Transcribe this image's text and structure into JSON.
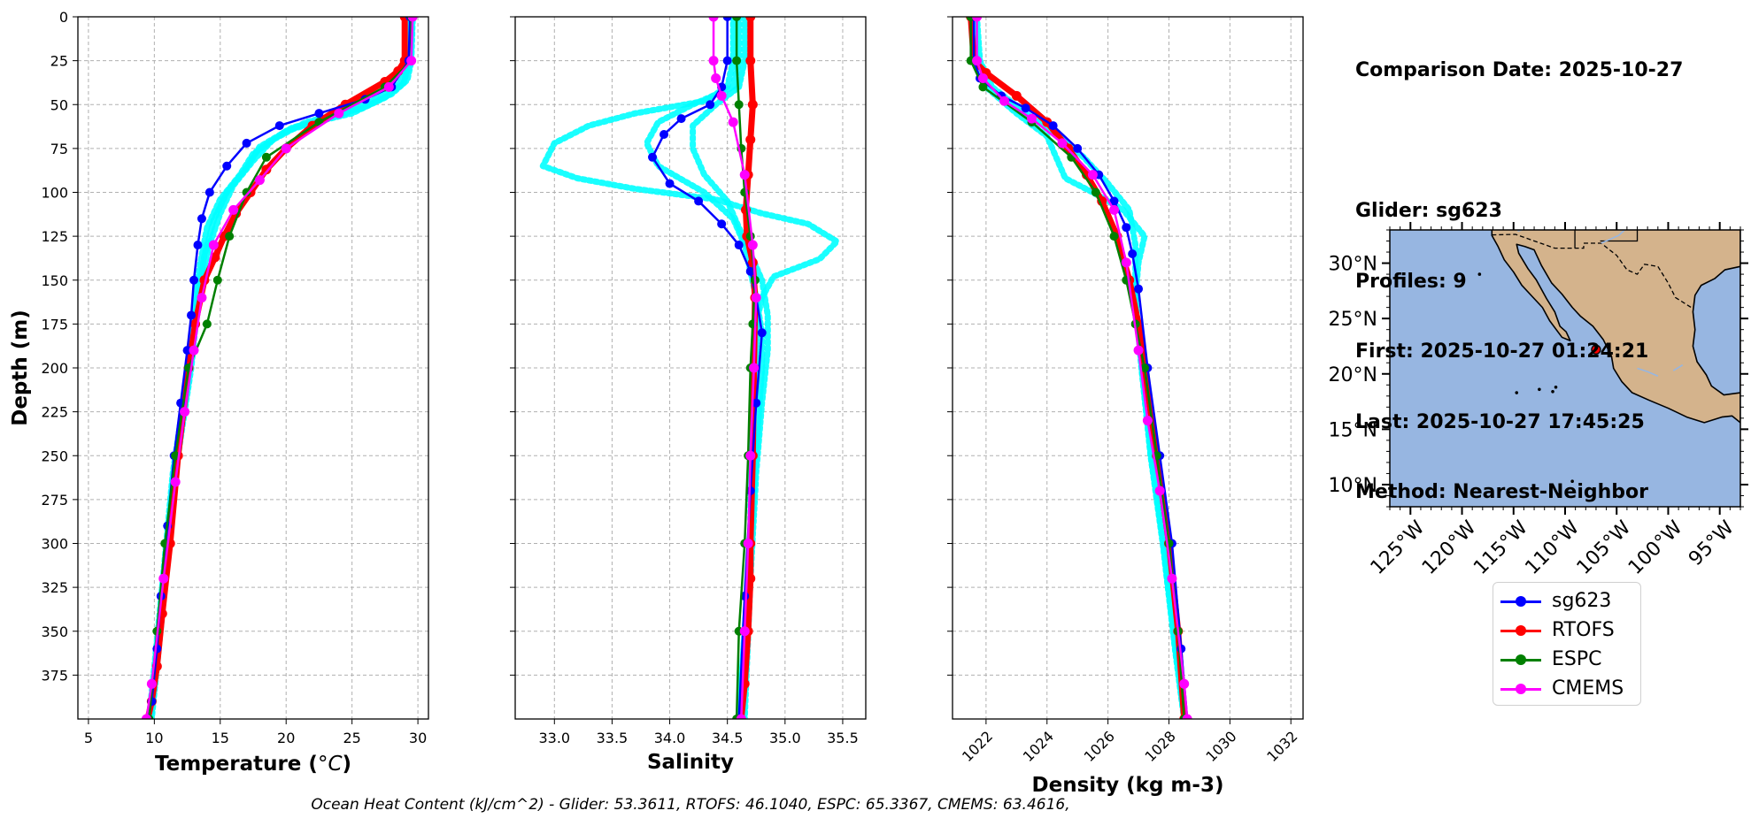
{
  "info": {
    "comparison_date": "Comparison Date: 2025-10-27",
    "glider": "Glider: sg623",
    "profiles": "Profiles: 9",
    "first": "First: 2025-10-27 01:24:21",
    "last": "Last: 2025-10-27 17:45:25",
    "method": "Method: Nearest-Neighbor"
  },
  "legend": [
    {
      "label": "sg623",
      "color": "#0000ff"
    },
    {
      "label": "RTOFS",
      "color": "#ff0000"
    },
    {
      "label": "ESPC",
      "color": "#008000"
    },
    {
      "label": "CMEMS",
      "color": "#ff00ff"
    }
  ],
  "footer": "Ocean Heat Content (kJ/cm^2) - Glider: 53.3611,  RTOFS: 46.1040,  ESPC: 65.3367,  CMEMS: 63.4616,",
  "colors": {
    "glider_raw": "#00ffff",
    "sg623": "#0000ff",
    "RTOFS": "#ff0000",
    "ESPC": "#008000",
    "CMEMS": "#ff00ff",
    "ocean": "#97b6e1",
    "land": "#d4b38c"
  },
  "chart_data": [
    {
      "type": "line",
      "title": "",
      "xlabel": "Temperature (°C)",
      "ylabel": "Depth (m)",
      "xlim": [
        4.2,
        30.8
      ],
      "ylim": [
        400,
        0
      ],
      "xticks": [
        5,
        10,
        15,
        20,
        25,
        30
      ],
      "yticks": [
        0,
        25,
        50,
        75,
        100,
        125,
        150,
        175,
        200,
        225,
        250,
        275,
        300,
        325,
        350,
        375
      ],
      "raw_profiles": [
        {
          "x": [
            29.4,
            29.3,
            28.6,
            27.0,
            24.5,
            20.0,
            17.5,
            16.5,
            15.0,
            14.0,
            13.5,
            13.1,
            12.9,
            12.6,
            12.0,
            11.4,
            10.9,
            10.4,
            10.0,
            9.6
          ],
          "y": [
            2,
            25,
            38,
            46,
            55,
            65,
            78,
            90,
            104,
            120,
            140,
            160,
            180,
            200,
            230,
            260,
            300,
            340,
            370,
            400
          ]
        },
        {
          "x": [
            29.5,
            29.4,
            28.9,
            27.5,
            25.0,
            20.5,
            18.0,
            17.0,
            15.5,
            14.5,
            13.8,
            13.3,
            13.0,
            12.7,
            12.1,
            11.5,
            11.0,
            10.5,
            10.1,
            9.7
          ],
          "y": [
            2,
            25,
            38,
            46,
            55,
            63,
            74,
            86,
            100,
            116,
            136,
            158,
            178,
            200,
            230,
            260,
            300,
            340,
            370,
            400
          ]
        },
        {
          "x": [
            29.6,
            29.5,
            29.2,
            28.0,
            25.8,
            21.5,
            19.0,
            17.5,
            16.0,
            15.0,
            14.1,
            13.5,
            13.1,
            12.8,
            12.2,
            11.6,
            11.1,
            10.6,
            10.2,
            9.8
          ],
          "y": [
            2,
            25,
            36,
            44,
            52,
            60,
            70,
            82,
            96,
            112,
            132,
            155,
            178,
            200,
            230,
            260,
            300,
            340,
            370,
            400
          ]
        }
      ],
      "series": [
        {
          "name": "sg623",
          "x": [
            29.4,
            29.3,
            28.0,
            26.0,
            22.5,
            19.5,
            17.0,
            15.5,
            14.2,
            13.6,
            13.3,
            13.0,
            12.8,
            12.5,
            12.0,
            11.5,
            11.0,
            10.5,
            10.2,
            9.8,
            9.5
          ],
          "y": [
            0,
            25,
            40,
            47,
            55,
            62,
            72,
            85,
            100,
            115,
            130,
            150,
            170,
            190,
            220,
            250,
            290,
            330,
            360,
            390,
            400
          ]
        },
        {
          "name": "RTOFS",
          "x": [
            29.0,
            29.0,
            28.5,
            27.5,
            24.5,
            22.0,
            20.0,
            18.5,
            17.3,
            16.2,
            15.3,
            14.6,
            13.8,
            13.1,
            12.6,
            11.8,
            11.2,
            10.6,
            10.2,
            9.8,
            9.5
          ],
          "y": [
            0,
            25,
            31,
            37,
            50,
            62,
            75,
            87,
            100,
            112,
            125,
            137,
            150,
            175,
            200,
            250,
            300,
            340,
            370,
            390,
            400
          ]
        },
        {
          "name": "ESPC",
          "x": [
            29.5,
            29.5,
            27.5,
            22.5,
            18.5,
            17.0,
            15.7,
            14.8,
            14.0,
            12.6,
            11.6,
            10.8,
            10.2,
            9.6
          ],
          "y": [
            0,
            25,
            40,
            60,
            80,
            100,
            125,
            150,
            175,
            200,
            250,
            300,
            350,
            400
          ]
        },
        {
          "name": "CMEMS",
          "x": [
            29.6,
            29.5,
            27.8,
            24.0,
            20.0,
            18.0,
            16.0,
            14.5,
            13.6,
            13.0,
            12.3,
            11.6,
            10.7,
            9.8,
            9.4
          ],
          "y": [
            0,
            25,
            40,
            55,
            75,
            93,
            110,
            130,
            160,
            190,
            225,
            265,
            320,
            380,
            400
          ]
        }
      ]
    },
    {
      "type": "line",
      "title": "",
      "xlabel": "Salinity",
      "ylabel": "",
      "xlim": [
        32.66,
        35.7
      ],
      "ylim": [
        400,
        0
      ],
      "xticks": [
        33.0,
        33.5,
        34.0,
        34.5,
        35.0,
        35.5
      ],
      "yticks": [
        0,
        25,
        50,
        75,
        100,
        125,
        150,
        175,
        200,
        225,
        250,
        275,
        300,
        325,
        350,
        375
      ],
      "raw_profiles": [
        {
          "x": [
            34.55,
            34.55,
            34.5,
            34.3,
            33.7,
            33.3,
            33.0,
            32.9,
            33.2,
            33.7,
            34.4,
            34.8,
            35.2,
            35.45,
            35.3,
            34.9,
            34.8,
            34.75,
            34.75,
            34.7,
            34.7,
            34.65,
            34.6
          ],
          "y": [
            0,
            25,
            40,
            48,
            55,
            62,
            72,
            85,
            92,
            98,
            104,
            112,
            118,
            128,
            138,
            148,
            160,
            175,
            200,
            250,
            300,
            350,
            400
          ]
        },
        {
          "x": [
            34.6,
            34.6,
            34.55,
            34.2,
            33.9,
            33.8,
            33.9,
            34.3,
            34.55,
            34.65,
            34.7,
            34.75,
            34.8,
            34.8,
            34.75,
            34.7,
            34.65,
            34.6
          ],
          "y": [
            0,
            25,
            40,
            50,
            60,
            72,
            85,
            100,
            115,
            130,
            145,
            160,
            180,
            200,
            250,
            300,
            350,
            400
          ]
        },
        {
          "x": [
            34.65,
            34.65,
            34.6,
            34.4,
            34.2,
            34.2,
            34.3,
            34.5,
            34.6,
            34.7,
            34.8,
            34.85,
            34.85,
            34.8,
            34.75,
            34.7,
            34.65
          ],
          "y": [
            0,
            25,
            40,
            50,
            62,
            75,
            90,
            105,
            120,
            135,
            150,
            170,
            190,
            220,
            260,
            320,
            400
          ]
        }
      ],
      "series": [
        {
          "name": "sg623",
          "x": [
            34.5,
            34.5,
            34.45,
            34.35,
            34.1,
            33.95,
            33.85,
            34.0,
            34.25,
            34.45,
            34.6,
            34.7,
            34.75,
            34.8,
            34.75,
            34.7,
            34.65,
            34.6
          ],
          "y": [
            0,
            25,
            40,
            50,
            58,
            67,
            80,
            95,
            105,
            118,
            130,
            145,
            160,
            180,
            220,
            270,
            330,
            400
          ]
        },
        {
          "name": "RTOFS",
          "x": [
            34.7,
            34.7,
            34.72,
            34.7,
            34.68,
            34.66,
            34.67,
            34.72,
            34.74,
            34.73,
            34.72,
            34.7,
            34.7,
            34.68,
            34.65,
            34.62
          ],
          "y": [
            0,
            25,
            50,
            70,
            90,
            110,
            125,
            140,
            160,
            200,
            250,
            300,
            320,
            350,
            380,
            400
          ]
        },
        {
          "name": "ESPC",
          "x": [
            34.58,
            34.58,
            34.6,
            34.62,
            34.65,
            34.7,
            34.74,
            34.72,
            34.7,
            34.68,
            34.65,
            34.6,
            34.58
          ],
          "y": [
            0,
            25,
            50,
            75,
            100,
            125,
            150,
            175,
            200,
            250,
            300,
            350,
            400
          ]
        },
        {
          "name": "CMEMS",
          "x": [
            34.38,
            34.38,
            34.4,
            34.45,
            34.55,
            34.65,
            34.72,
            34.75,
            34.73,
            34.7,
            34.68,
            34.65,
            34.62
          ],
          "y": [
            0,
            25,
            35,
            45,
            60,
            90,
            130,
            160,
            200,
            250,
            300,
            350,
            400
          ]
        }
      ]
    },
    {
      "type": "line",
      "title": "",
      "xlabel": "Density (kg m-3)",
      "ylabel": "",
      "xlim": [
        1020.9,
        1032.4
      ],
      "ylim": [
        400,
        0
      ],
      "xticks": [
        1022,
        1024,
        1026,
        1028,
        1030,
        1032
      ],
      "yticks": [
        0,
        25,
        50,
        75,
        100,
        125,
        150,
        175,
        200,
        225,
        250,
        275,
        300,
        325,
        350,
        375
      ],
      "raw_profiles": [
        {
          "x": [
            1021.6,
            1021.7,
            1022.0,
            1023.0,
            1024.0,
            1024.3,
            1024.6,
            1025.5,
            1026.5,
            1027.2,
            1027.0,
            1026.9,
            1027.1,
            1027.4,
            1027.8,
            1028.2,
            1028.5
          ],
          "y": [
            0,
            25,
            40,
            55,
            68,
            80,
            92,
            100,
            110,
            125,
            140,
            160,
            200,
            250,
            300,
            360,
            400
          ]
        },
        {
          "x": [
            1021.7,
            1021.8,
            1022.2,
            1023.3,
            1024.4,
            1025.2,
            1026.0,
            1026.7,
            1026.9,
            1026.9,
            1027.1,
            1027.4,
            1027.8,
            1028.2,
            1028.5
          ],
          "y": [
            0,
            25,
            40,
            55,
            68,
            80,
            95,
            110,
            130,
            160,
            200,
            250,
            300,
            360,
            400
          ]
        }
      ],
      "series": [
        {
          "name": "sg623",
          "x": [
            1021.6,
            1021.6,
            1021.8,
            1022.5,
            1023.3,
            1024.2,
            1025.0,
            1025.7,
            1026.2,
            1026.6,
            1026.8,
            1027.0,
            1027.3,
            1027.7,
            1028.1,
            1028.4,
            1028.6
          ],
          "y": [
            0,
            25,
            35,
            45,
            52,
            62,
            75,
            90,
            105,
            120,
            135,
            155,
            200,
            250,
            300,
            360,
            400
          ]
        },
        {
          "name": "RTOFS",
          "x": [
            1021.5,
            1021.6,
            1022.0,
            1023.0,
            1024.0,
            1024.7,
            1025.3,
            1025.8,
            1026.3,
            1026.7,
            1027.0,
            1027.2,
            1027.6,
            1028.0,
            1028.3,
            1028.5
          ],
          "y": [
            0,
            25,
            32,
            45,
            60,
            75,
            90,
            105,
            125,
            150,
            175,
            200,
            250,
            300,
            350,
            400
          ]
        },
        {
          "name": "ESPC",
          "x": [
            1021.5,
            1021.5,
            1021.9,
            1023.5,
            1024.8,
            1025.6,
            1026.2,
            1026.6,
            1026.9,
            1027.2,
            1027.6,
            1028.0,
            1028.3,
            1028.5
          ],
          "y": [
            0,
            25,
            40,
            60,
            80,
            100,
            125,
            150,
            175,
            200,
            250,
            300,
            350,
            400
          ]
        },
        {
          "name": "CMEMS",
          "x": [
            1021.7,
            1021.7,
            1021.9,
            1022.6,
            1023.5,
            1024.5,
            1025.5,
            1026.2,
            1026.6,
            1027.0,
            1027.3,
            1027.7,
            1028.1,
            1028.5,
            1028.6
          ],
          "y": [
            0,
            25,
            35,
            48,
            58,
            72,
            90,
            110,
            140,
            190,
            230,
            270,
            320,
            380,
            400
          ]
        }
      ]
    },
    {
      "type": "map",
      "title": "",
      "lon_range": [
        -127,
        -93
      ],
      "lat_range": [
        8,
        33
      ],
      "lon_ticks": [
        -125,
        -120,
        -115,
        -110,
        -105,
        -100,
        -95
      ],
      "lat_ticks": [
        10,
        15,
        20,
        25,
        30
      ],
      "lon_tick_labels": [
        "125°W",
        "120°W",
        "115°W",
        "110°W",
        "105°W",
        "100°W",
        "95°W"
      ],
      "lat_tick_labels": [
        "10°N",
        "15°N",
        "20°N",
        "25°N",
        "30°N"
      ],
      "glider_position": {
        "lon": -107.0,
        "lat": 22.2
      }
    }
  ]
}
